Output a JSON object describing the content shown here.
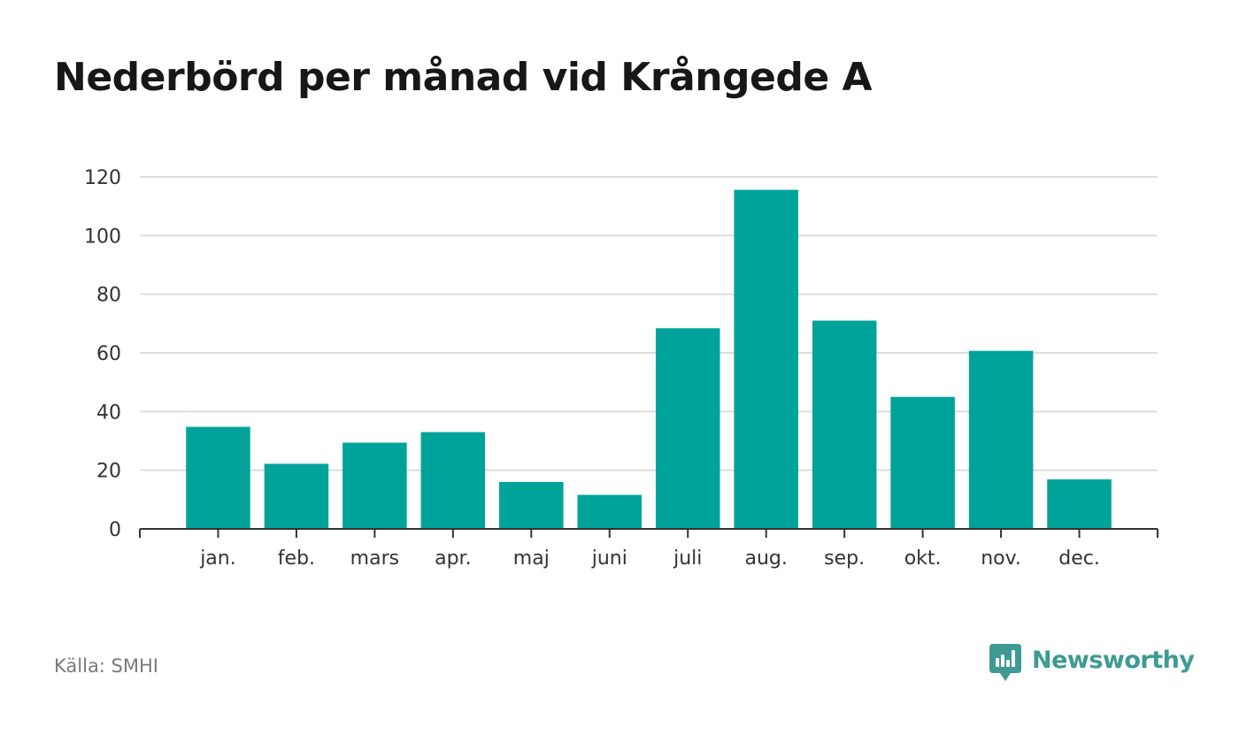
{
  "chart_data": {
    "type": "bar",
    "title": "Nederbörd per månad vid Krångede A",
    "categories": [
      "jan.",
      "feb.",
      "mars",
      "apr.",
      "maj",
      "juni",
      "juli",
      "aug.",
      "sep.",
      "okt.",
      "nov.",
      "dec."
    ],
    "values": [
      34.8,
      22.2,
      29.4,
      33.0,
      16.0,
      11.6,
      68.4,
      115.6,
      71.0,
      45.0,
      60.7,
      16.9
    ],
    "ylim": [
      0,
      120
    ],
    "yticks": [
      0,
      20,
      40,
      60,
      80,
      100,
      120
    ],
    "xlabel": "",
    "ylabel": "",
    "grid": true,
    "bar_color": "#00a39a"
  },
  "footer": {
    "source": "Källa: SMHI",
    "brand_name": "Newsworthy",
    "brand_icon": "newsworthy-logo-icon",
    "brand_color": "#3e9a93"
  }
}
